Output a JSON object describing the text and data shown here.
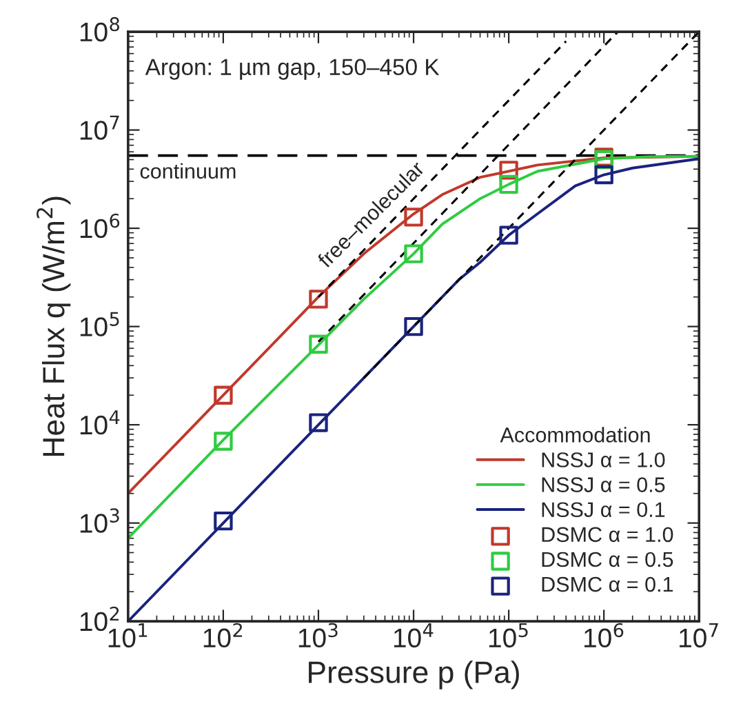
{
  "chart_data": {
    "type": "line",
    "xlabel": "Pressure p (Pa)",
    "ylabel": "Heat Flux q (W/m$^{2}$)",
    "log": "xy",
    "xlim": [
      10,
      10000000
    ],
    "ylim": [
      100,
      100000000
    ],
    "xticks": [
      {
        "value": 10,
        "label": "10$^{1}$"
      },
      {
        "value": 100,
        "label": "10$^{2}$"
      },
      {
        "value": 1000,
        "label": "10$^{3}$"
      },
      {
        "value": 10000,
        "label": "10$^{4}$"
      },
      {
        "value": 100000,
        "label": "10$^{5}$"
      },
      {
        "value": 1000000,
        "label": "10$^{6}$"
      },
      {
        "value": 10000000,
        "label": "10$^{7}$"
      }
    ],
    "yticks": [
      {
        "value": 100,
        "label": "10$^{2}$"
      },
      {
        "value": 1000,
        "label": "10$^{3}$"
      },
      {
        "value": 10000,
        "label": "10$^{4}$"
      },
      {
        "value": 100000,
        "label": "10$^{5}$"
      },
      {
        "value": 1000000,
        "label": "10$^{6}$"
      },
      {
        "value": 10000000,
        "label": "10$^{7}$"
      },
      {
        "value": 100000000,
        "label": "10$^{8}$"
      }
    ],
    "grid": false,
    "legend": "bottom right",
    "legend_title": "Accommodation",
    "series": [
      {
        "name": "NSSJ α = 1.0",
        "color": "#c0392b",
        "marker": "none",
        "line_style": "solid",
        "x": [
          10,
          100,
          1000,
          3000,
          10000,
          20000,
          50000,
          100000,
          200000,
          1000000,
          10000000
        ],
        "values": [
          2000,
          20000,
          200000,
          550000,
          1400000,
          2200000,
          3300000,
          3800000,
          4400000,
          5200000,
          5400000
        ]
      },
      {
        "name": "NSSJ α = 0.5",
        "color": "#2ecc40",
        "marker": "none",
        "line_style": "solid",
        "x": [
          10,
          100,
          1000,
          3000,
          10000,
          20000,
          50000,
          100000,
          200000,
          1000000,
          3000000,
          10000000
        ],
        "values": [
          700,
          7000,
          65000,
          190000,
          550000,
          1100000,
          2000000,
          2800000,
          3800000,
          5100000,
          5350000,
          5400000
        ]
      },
      {
        "name": "NSSJ α = 0.1",
        "color": "#1a237e",
        "marker": "none",
        "line_style": "solid",
        "x": [
          10,
          100,
          1000,
          10000,
          30000,
          50000,
          100000,
          200000,
          500000,
          1000000,
          2000000,
          10000000
        ],
        "values": [
          100,
          1000,
          10000,
          100000,
          300000,
          450000,
          850000,
          1400000,
          2700000,
          3500000,
          4100000,
          5100000
        ]
      },
      {
        "name": "DSMC α = 1.0",
        "type": "scatter",
        "color": "#c0392b",
        "marker": "square",
        "x": [
          100,
          1000,
          10000,
          100000,
          1000000
        ],
        "values": [
          20000,
          190000,
          1300000,
          3900000,
          5300000
        ]
      },
      {
        "name": "DSMC α = 0.5",
        "type": "scatter",
        "color": "#2ecc40",
        "marker": "square",
        "x": [
          100,
          1000,
          10000,
          100000,
          1000000
        ],
        "values": [
          6800,
          66000,
          550000,
          2800000,
          5000000
        ]
      },
      {
        "name": "DSMC α = 0.1",
        "type": "scatter",
        "color": "#1a237e",
        "marker": "square",
        "x": [
          100,
          1000,
          10000,
          100000,
          1000000
        ],
        "values": [
          1050,
          10500,
          100000,
          850000,
          3500000
        ]
      },
      {
        "color": "#000000",
        "marker": "none",
        "line_style": "dashed",
        "x": [
          1000,
          400000
        ],
        "values": [
          200000,
          80000000
        ]
      },
      {
        "color": "#000000",
        "marker": "none",
        "line_style": "dashed",
        "x": [
          1000,
          1400000
        ],
        "values": [
          70000,
          100000000
        ]
      },
      {
        "color": "#000000",
        "marker": "none",
        "line_style": "dashed",
        "x": [
          3000,
          10000000
        ],
        "values": [
          30000,
          100000000
        ]
      }
    ],
    "ref_lines": [
      {
        "axis": "y",
        "value": 5500000,
        "label": "continuum",
        "color": "#000000",
        "line_style": "dashed"
      }
    ],
    "annotations": [
      "Argon: 1 µm gap, 150–450 K",
      {
        "text": "free–molecular",
        "x": 5000,
        "y": 1000000
      }
    ]
  }
}
